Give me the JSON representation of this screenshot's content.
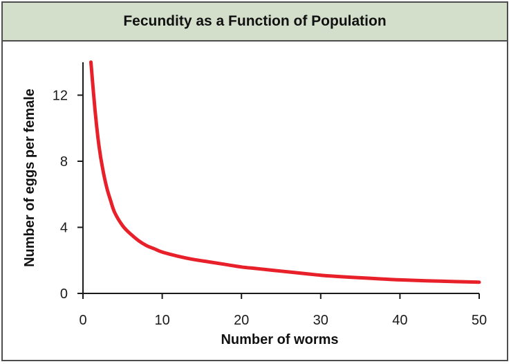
{
  "chart_data": {
    "type": "line",
    "title": "Fecundity as a Function of Population",
    "xlabel": "Number of worms",
    "ylabel": "Number of eggs per female",
    "xlim": [
      0,
      50
    ],
    "ylim": [
      0,
      14
    ],
    "xticks": [
      0,
      10,
      20,
      30,
      40,
      50
    ],
    "yticks": [
      0,
      4,
      8,
      12
    ],
    "grid": false,
    "colors": {
      "line": "#e8202a",
      "axis": "#1a1a1a",
      "title_bg": "#d4dfcb"
    },
    "series": [
      {
        "x": [
          1,
          1.5,
          2,
          2.5,
          3,
          3.5,
          4,
          5,
          6,
          7,
          8,
          9,
          10,
          12,
          14,
          16,
          18,
          20,
          22,
          25,
          28,
          30,
          33,
          36,
          40,
          45,
          50
        ],
        "y": [
          14.0,
          11.2,
          9.0,
          7.5,
          6.4,
          5.6,
          4.9,
          4.1,
          3.6,
          3.2,
          2.9,
          2.7,
          2.5,
          2.25,
          2.05,
          1.9,
          1.75,
          1.6,
          1.5,
          1.35,
          1.2,
          1.1,
          1.0,
          0.92,
          0.82,
          0.74,
          0.68
        ]
      }
    ]
  }
}
